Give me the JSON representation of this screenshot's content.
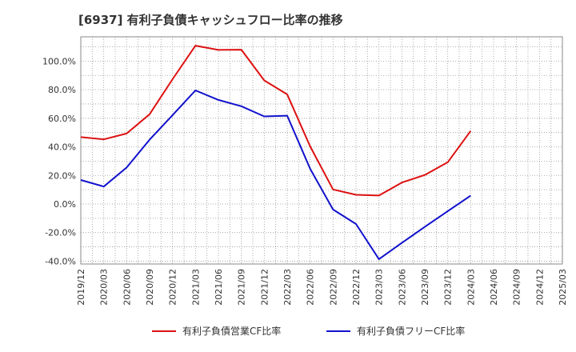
{
  "chart_data": {
    "type": "line",
    "title": "[6937]  有利子負債キャッシュフロー比率の推移",
    "xlabel": "",
    "ylabel": "",
    "ylim": [
      -42,
      117
    ],
    "grid": true,
    "legend_position": "bottom",
    "x_categories": [
      "2019/12",
      "2020/03",
      "2020/06",
      "2020/09",
      "2020/12",
      "2021/03",
      "2021/06",
      "2021/09",
      "2021/12",
      "2022/03",
      "2022/06",
      "2022/09",
      "2022/12",
      "2023/03",
      "2023/06",
      "2023/09",
      "2023/12",
      "2024/03",
      "2024/06",
      "2024/09",
      "2024/12",
      "2025/03"
    ],
    "y_ticks": [
      {
        "value": 100,
        "label": "100.0%"
      },
      {
        "value": 80,
        "label": "80.0%"
      },
      {
        "value": 60,
        "label": "60.0%"
      },
      {
        "value": 40,
        "label": "40.0%"
      },
      {
        "value": 20,
        "label": "20.0%"
      },
      {
        "value": 0,
        "label": "0.0%"
      },
      {
        "value": -20,
        "label": "-20.0%"
      },
      {
        "value": -40,
        "label": "-40.0%"
      }
    ],
    "series": [
      {
        "name": "有利子負債営業CF比率",
        "color": "#dd1111",
        "points": [
          [
            "2019/12",
            46.8
          ],
          [
            "2020/03",
            45.2
          ],
          [
            "2020/06",
            49.3
          ],
          [
            "2020/09",
            62.8
          ],
          [
            "2020/12",
            87.3
          ],
          [
            "2021/03",
            110.8
          ],
          [
            "2021/06",
            107.8
          ],
          [
            "2021/09",
            108.0
          ],
          [
            "2021/12",
            86.5
          ],
          [
            "2022/03",
            76.7
          ],
          [
            "2022/06",
            40.3
          ],
          [
            "2022/09",
            10.2
          ],
          [
            "2022/12",
            6.4
          ],
          [
            "2023/03",
            5.9
          ],
          [
            "2023/06",
            15.0
          ],
          [
            "2023/09",
            20.3
          ],
          [
            "2023/12",
            29.2
          ],
          [
            "2024/03",
            51.1
          ]
        ]
      },
      {
        "name": "有利子負債フリーCF比率",
        "color": "#1111cc",
        "points": [
          [
            "2019/12",
            16.8
          ],
          [
            "2020/03",
            12.2
          ],
          [
            "2020/06",
            25.5
          ],
          [
            "2020/09",
            45.0
          ],
          [
            "2020/12",
            62.2
          ],
          [
            "2021/03",
            79.5
          ],
          [
            "2021/06",
            72.8
          ],
          [
            "2021/09",
            68.4
          ],
          [
            "2021/12",
            61.3
          ],
          [
            "2022/03",
            61.8
          ],
          [
            "2022/06",
            24.6
          ],
          [
            "2022/09",
            -3.9
          ],
          [
            "2022/12",
            -14.0
          ],
          [
            "2023/03",
            -38.6
          ],
          [
            "2023/06",
            -27.2
          ],
          [
            "2023/09",
            -16.0
          ],
          [
            "2023/12",
            -5.0
          ],
          [
            "2024/03",
            5.8
          ]
        ]
      }
    ]
  }
}
